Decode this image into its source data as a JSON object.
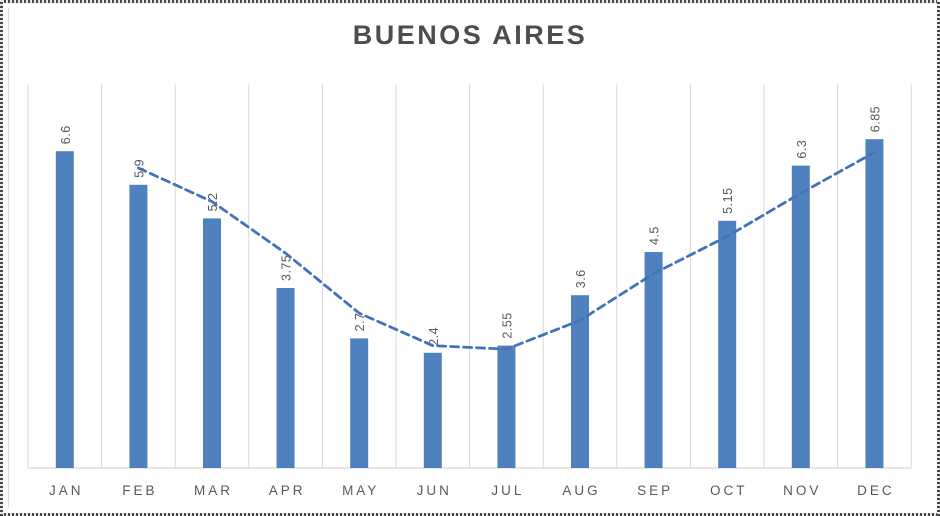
{
  "chart_data": {
    "type": "bar",
    "title": "BUENOS AIRES",
    "categories": [
      "JAN",
      "FEB",
      "MAR",
      "APR",
      "MAY",
      "JUN",
      "JUL",
      "AUG",
      "SEP",
      "OCT",
      "NOV",
      "DEC"
    ],
    "values": [
      6.6,
      5.9,
      5.2,
      3.75,
      2.7,
      2.4,
      2.55,
      3.6,
      4.5,
      5.15,
      6.3,
      6.85
    ],
    "data_labels": [
      "6.6",
      "5.9",
      "5.2",
      "3.75",
      "2.7",
      "2.4",
      "2.55",
      "3.6",
      "4.5",
      "5.15",
      "6.3",
      "6.85"
    ],
    "data_label_rotation": -90,
    "xlabel": "",
    "ylabel": "",
    "ylim": [
      0,
      8
    ],
    "grid": "vertical-only",
    "legend": "none",
    "trendline": {
      "type": "moving-average",
      "period": 2,
      "line_style": "dashed",
      "categories": [
        "FEB",
        "MAR",
        "APR",
        "MAY",
        "JUN",
        "JUL",
        "AUG",
        "SEP",
        "OCT",
        "NOV",
        "DEC"
      ],
      "values": [
        6.25,
        5.55,
        4.475,
        3.225,
        2.55,
        2.475,
        3.075,
        4.05,
        4.825,
        5.725,
        6.575
      ]
    }
  },
  "colors": {
    "background": "#FFFFFF",
    "bar": "#4E81BD",
    "trendline": "#4273B8",
    "gridline": "#D9D9D9",
    "axis_line": "#D6D6D6",
    "label": "#595959",
    "title": "#4D4D4D",
    "selection_dots": "#474747"
  }
}
